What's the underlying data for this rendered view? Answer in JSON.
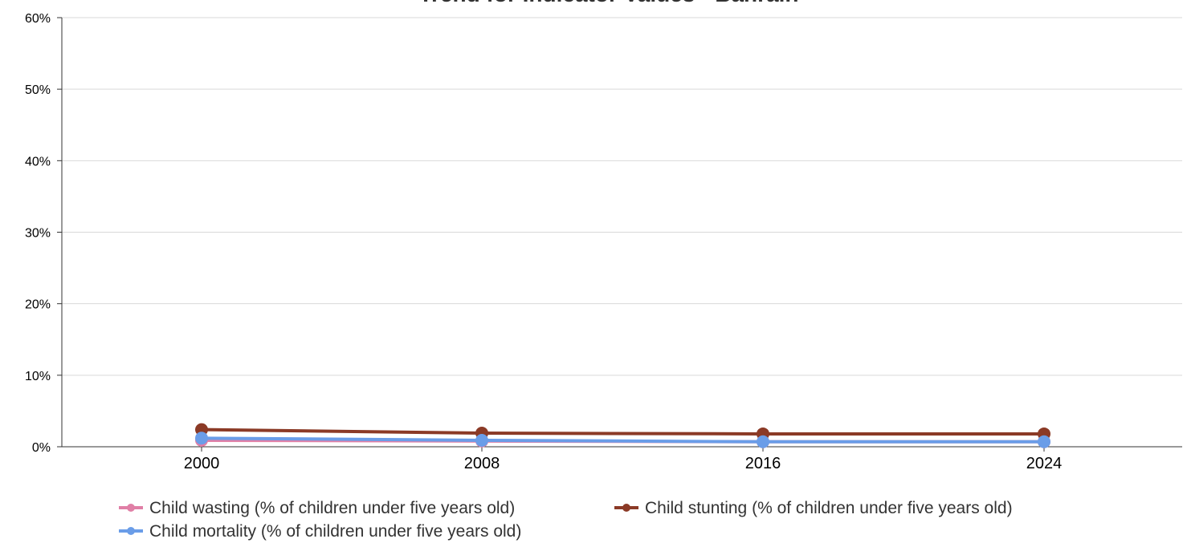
{
  "chart_data": {
    "type": "line",
    "title": "Trend for Indicator Values - Bahrain",
    "xlabel": "",
    "ylabel": "",
    "x": [
      "2000",
      "2008",
      "2016",
      "2024"
    ],
    "ylim": [
      0,
      60
    ],
    "y_ticks": [
      0,
      10,
      20,
      30,
      40,
      50,
      60
    ],
    "y_tick_labels": [
      "0%",
      "10%",
      "20%",
      "30%",
      "40%",
      "50%",
      "60%"
    ],
    "grid": true,
    "legend_position": "bottom",
    "series": [
      {
        "name": "Child wasting (% of children under five years old)",
        "color": "#e07fa6",
        "values": [
          0.9,
          0.8,
          0.7,
          0.7
        ]
      },
      {
        "name": "Child stunting (% of children under five years old)",
        "color": "#8b3a26",
        "values": [
          2.4,
          1.9,
          1.8,
          1.8
        ]
      },
      {
        "name": "Child mortality (% of children under five years old)",
        "color": "#6a9de8",
        "values": [
          1.2,
          0.9,
          0.7,
          0.7
        ]
      }
    ]
  }
}
